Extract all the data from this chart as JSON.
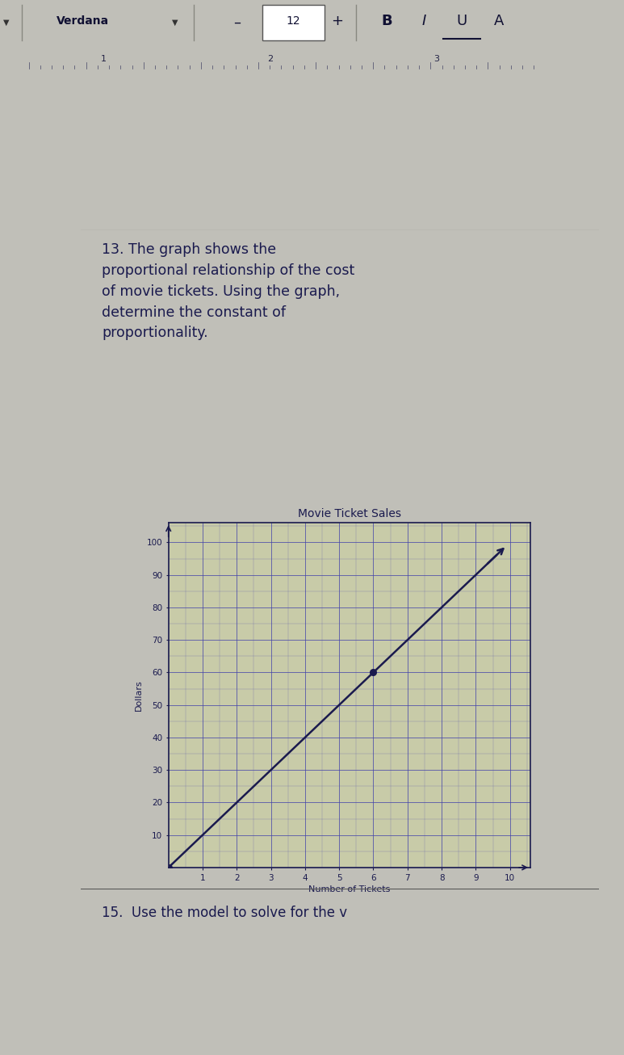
{
  "title": "Movie Ticket Sales",
  "xlabel": "Number of Tickets",
  "ylabel": "Dollars",
  "x_data": [
    0,
    9.6
  ],
  "y_data": [
    0,
    96
  ],
  "marked_points": [
    [
      0,
      0
    ],
    [
      6,
      60
    ]
  ],
  "x_ticks": [
    1,
    2,
    3,
    4,
    5,
    6,
    7,
    8,
    9,
    10
  ],
  "y_ticks": [
    10,
    20,
    30,
    40,
    50,
    60,
    70,
    80,
    90,
    100
  ],
  "xlim": [
    0,
    10.6
  ],
  "ylim": [
    0,
    106
  ],
  "line_color": "#1a1a4e",
  "point_color": "#1a1a4e",
  "grid_color": "#4444aa",
  "axis_color": "#1a1a4e",
  "bg_color": "#c8cba8",
  "text_color": "#1a1a4e",
  "title_fontsize": 10,
  "label_fontsize": 8,
  "tick_fontsize": 7.5,
  "question_text": "13. The graph shows the\nproportional relationship of the cost\nof movie tickets. Using the graph,\ndetermine the constant of\nproportionality.",
  "bottom_text": "15.  Use the model to solve for the v",
  "page_bg": "#c0bfb8",
  "content_bg": "#c8c7c0",
  "toolbar_bg": "#c0bfb5",
  "ruler_bg": "#b8b8b0",
  "doc_bg": "#c8c7bf"
}
